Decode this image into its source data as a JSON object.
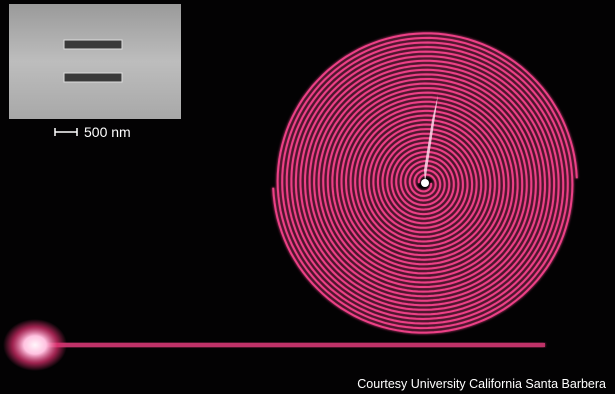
{
  "inset": {
    "scale_label": "500 nm"
  },
  "credit": "Courtesy University California Santa Barbera"
}
